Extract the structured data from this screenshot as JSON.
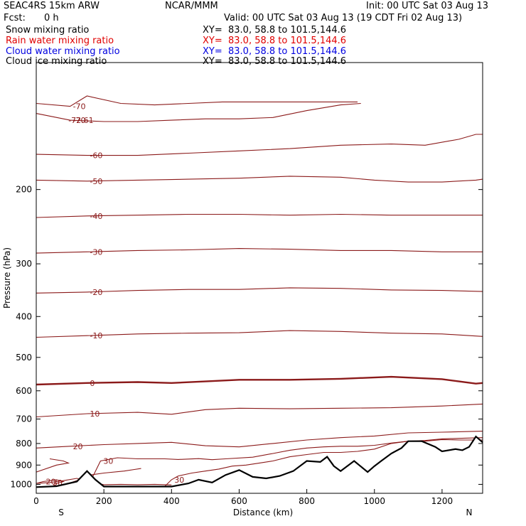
{
  "header": {
    "model": "SEAC4RS 15km ARW",
    "org": "NCAR/MMM",
    "init": "Init: 00 UTC Sat 03 Aug 13",
    "fcst_label": "Fcst:",
    "fcst_value": "0 h",
    "valid": "Valid: 00 UTC Sat 03 Aug 13 (19 CDT Fri 02 Aug 13)"
  },
  "fields": [
    {
      "name": "Snow mixing ratio",
      "xy": "XY=  83.0, 58.8 to 101.5,144.6",
      "color": "#000000"
    },
    {
      "name": "Rain water mixing ratio",
      "xy": "XY=  83.0, 58.8 to 101.5,144.6",
      "color": "#e00000"
    },
    {
      "name": "Cloud water mixing ratio",
      "xy": "XY=  83.0, 58.8 to 101.5,144.6",
      "color": "#0000e0"
    },
    {
      "name": "Cloud ice mixing ratio",
      "xy": "XY=  83.0, 58.8 to 101.5,144.6",
      "color": "#000000"
    }
  ],
  "colors": {
    "contour": "#8b1a1a",
    "terrain": "#000000"
  },
  "chart_data": {
    "type": "line",
    "xlabel": "Distance (km)",
    "ylabel": "Pressure (hPa)",
    "xlim": [
      0,
      1320
    ],
    "ylim": [
      1050,
      100
    ],
    "y_scale": "log",
    "x_ticks": [
      0,
      200,
      400,
      600,
      800,
      1000,
      1200
    ],
    "y_ticks": [
      200,
      300,
      400,
      500,
      600,
      700,
      800,
      900,
      1000
    ],
    "end_labels": {
      "left": "S",
      "right": "N"
    },
    "extremum_label": "-72.61",
    "isotherms": [
      {
        "label": "-70",
        "values": [
          [
            0,
            132
          ],
          [
            100,
            137
          ],
          [
            200,
            138
          ],
          [
            300,
            138
          ],
          [
            400,
            137
          ],
          [
            500,
            136
          ],
          [
            600,
            136
          ],
          [
            700,
            135
          ],
          [
            800,
            130
          ],
          [
            900,
            126
          ],
          [
            960,
            125
          ]
        ]
      },
      {
        "label": "-70",
        "values": [
          [
            0,
            125
          ],
          [
            100,
            127
          ],
          [
            150,
            120
          ],
          [
            250,
            125
          ],
          [
            350,
            126
          ],
          [
            450,
            125
          ],
          [
            550,
            124
          ],
          [
            700,
            124
          ],
          [
            850,
            124
          ],
          [
            950,
            124
          ]
        ]
      },
      {
        "label": "-60",
        "values": [
          [
            0,
            165
          ],
          [
            150,
            166
          ],
          [
            300,
            166
          ],
          [
            450,
            164
          ],
          [
            600,
            162
          ],
          [
            750,
            160
          ],
          [
            900,
            157
          ],
          [
            1050,
            156
          ],
          [
            1150,
            157
          ],
          [
            1250,
            152
          ],
          [
            1300,
            148
          ],
          [
            1320,
            148
          ]
        ]
      },
      {
        "label": "-50",
        "values": [
          [
            0,
            190
          ],
          [
            150,
            191
          ],
          [
            300,
            190
          ],
          [
            450,
            189
          ],
          [
            600,
            188
          ],
          [
            750,
            186
          ],
          [
            900,
            187
          ],
          [
            1000,
            190
          ],
          [
            1100,
            192
          ],
          [
            1200,
            192
          ],
          [
            1300,
            190
          ],
          [
            1320,
            189
          ]
        ]
      },
      {
        "label": "-40",
        "values": [
          [
            0,
            233
          ],
          [
            150,
            231
          ],
          [
            300,
            230
          ],
          [
            450,
            229
          ],
          [
            600,
            229
          ],
          [
            750,
            230
          ],
          [
            900,
            229
          ],
          [
            1050,
            230
          ],
          [
            1200,
            230
          ],
          [
            1320,
            230
          ]
        ]
      },
      {
        "label": "-30",
        "values": [
          [
            0,
            283
          ],
          [
            150,
            281
          ],
          [
            300,
            279
          ],
          [
            450,
            278
          ],
          [
            600,
            276
          ],
          [
            750,
            277
          ],
          [
            900,
            279
          ],
          [
            1050,
            279
          ],
          [
            1200,
            281
          ],
          [
            1320,
            281
          ]
        ]
      },
      {
        "label": "-20",
        "values": [
          [
            0,
            352
          ],
          [
            150,
            350
          ],
          [
            300,
            347
          ],
          [
            450,
            345
          ],
          [
            600,
            345
          ],
          [
            750,
            342
          ],
          [
            900,
            343
          ],
          [
            1050,
            346
          ],
          [
            1200,
            347
          ],
          [
            1320,
            349
          ]
        ]
      },
      {
        "label": "-10",
        "values": [
          [
            0,
            448
          ],
          [
            150,
            444
          ],
          [
            300,
            440
          ],
          [
            450,
            438
          ],
          [
            600,
            437
          ],
          [
            750,
            432
          ],
          [
            900,
            434
          ],
          [
            1050,
            438
          ],
          [
            1200,
            440
          ],
          [
            1320,
            446
          ]
        ]
      },
      {
        "label": "0",
        "bold": true,
        "values": [
          [
            0,
            580
          ],
          [
            150,
            575
          ],
          [
            300,
            572
          ],
          [
            400,
            575
          ],
          [
            500,
            570
          ],
          [
            600,
            565
          ],
          [
            750,
            565
          ],
          [
            900,
            562
          ],
          [
            1050,
            556
          ],
          [
            1200,
            563
          ],
          [
            1250,
            570
          ],
          [
            1300,
            577
          ],
          [
            1320,
            575
          ]
        ]
      },
      {
        "label": "10",
        "values": [
          [
            0,
            692
          ],
          [
            150,
            680
          ],
          [
            300,
            675
          ],
          [
            400,
            682
          ],
          [
            500,
            665
          ],
          [
            600,
            660
          ],
          [
            750,
            662
          ],
          [
            900,
            660
          ],
          [
            1050,
            658
          ],
          [
            1200,
            652
          ],
          [
            1320,
            645
          ]
        ]
      },
      {
        "label": "20",
        "values": [
          [
            0,
            820
          ],
          [
            100,
            812
          ],
          [
            200,
            805
          ],
          [
            300,
            800
          ],
          [
            400,
            795
          ],
          [
            500,
            810
          ],
          [
            600,
            815
          ],
          [
            700,
            800
          ],
          [
            800,
            785
          ],
          [
            900,
            775
          ],
          [
            1000,
            768
          ],
          [
            1100,
            755
          ],
          [
            1200,
            752
          ],
          [
            1320,
            748
          ]
        ]
      },
      {
        "label": "30",
        "values": [
          [
            160,
            985
          ],
          [
            190,
            880
          ],
          [
            240,
            865
          ],
          [
            300,
            870
          ],
          [
            380,
            870
          ],
          [
            420,
            873
          ],
          [
            480,
            869
          ],
          [
            520,
            874
          ],
          [
            560,
            870
          ],
          [
            640,
            862
          ],
          [
            700,
            845
          ],
          [
            750,
            830
          ],
          [
            800,
            820
          ],
          [
            850,
            815
          ],
          [
            900,
            812
          ],
          [
            950,
            812
          ],
          [
            1000,
            808
          ],
          [
            1050,
            798
          ],
          [
            1100,
            790
          ],
          [
            1150,
            787
          ],
          [
            1200,
            780
          ],
          [
            1250,
            778
          ],
          [
            1320,
            775
          ]
        ]
      },
      {
        "label": "30",
        "values": [
          [
            80,
            1005
          ],
          [
            120,
            980
          ],
          [
            160,
            950
          ],
          [
            200,
            940
          ],
          [
            260,
            930
          ],
          [
            290,
            922
          ],
          [
            310,
            917
          ]
        ]
      },
      {
        "label": "30",
        "values": [
          [
            0,
            995
          ],
          [
            40,
            990
          ],
          [
            80,
            980
          ],
          [
            120,
            968
          ],
          [
            160,
            985
          ],
          [
            200,
            1002
          ],
          [
            250,
            1000
          ],
          [
            300,
            1002
          ],
          [
            350,
            1000
          ],
          [
            400,
            1003
          ]
        ]
      },
      {
        "label": "30",
        "values": [
          [
            370,
            1030
          ],
          [
            400,
            975
          ],
          [
            420,
            955
          ],
          [
            460,
            940
          ],
          [
            500,
            930
          ],
          [
            540,
            920
          ],
          [
            580,
            905
          ],
          [
            620,
            900
          ],
          [
            660,
            890
          ],
          [
            700,
            880
          ],
          [
            750,
            860
          ],
          [
            800,
            850
          ],
          [
            850,
            840
          ],
          [
            900,
            840
          ],
          [
            950,
            835
          ],
          [
            1000,
            825
          ],
          [
            1050,
            800
          ],
          [
            1100,
            790
          ],
          [
            1150,
            790
          ],
          [
            1200,
            783
          ],
          [
            1250,
            785
          ],
          [
            1320,
            785
          ]
        ]
      },
      {
        "label": "20",
        "values": [
          [
            0,
            995
          ],
          [
            20,
            985
          ],
          [
            60,
            975
          ],
          [
            80,
            985
          ],
          [
            50,
            1000
          ]
        ]
      },
      {
        "label": "",
        "values": [
          [
            0,
            935
          ],
          [
            60,
            900
          ],
          [
            95,
            890
          ],
          [
            80,
            880
          ],
          [
            40,
            870
          ]
        ]
      }
    ],
    "terrain": [
      [
        0,
        1015
      ],
      [
        60,
        1010
      ],
      [
        120,
        985
      ],
      [
        150,
        930
      ],
      [
        175,
        975
      ],
      [
        200,
        1012
      ],
      [
        300,
        1012
      ],
      [
        400,
        1012
      ],
      [
        450,
        995
      ],
      [
        480,
        975
      ],
      [
        520,
        990
      ],
      [
        560,
        950
      ],
      [
        600,
        925
      ],
      [
        640,
        960
      ],
      [
        680,
        968
      ],
      [
        720,
        955
      ],
      [
        760,
        930
      ],
      [
        800,
        880
      ],
      [
        840,
        885
      ],
      [
        860,
        860
      ],
      [
        880,
        905
      ],
      [
        900,
        930
      ],
      [
        940,
        880
      ],
      [
        980,
        935
      ],
      [
        1000,
        905
      ],
      [
        1020,
        880
      ],
      [
        1050,
        845
      ],
      [
        1080,
        820
      ],
      [
        1100,
        790
      ],
      [
        1140,
        790
      ],
      [
        1180,
        815
      ],
      [
        1200,
        835
      ],
      [
        1240,
        825
      ],
      [
        1260,
        830
      ],
      [
        1280,
        815
      ],
      [
        1300,
        770
      ],
      [
        1320,
        795
      ]
    ]
  }
}
